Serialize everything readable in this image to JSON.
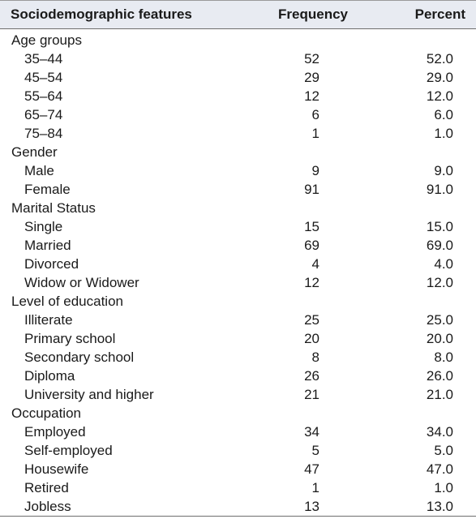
{
  "headers": {
    "feature": "Sociodemographic features",
    "frequency": "Frequency",
    "percent": "Percent"
  },
  "groups": [
    {
      "label": "Age groups",
      "rows": [
        {
          "label": "35–44",
          "frequency": "52",
          "percent": "52.0"
        },
        {
          "label": "45–54",
          "frequency": "29",
          "percent": "29.0"
        },
        {
          "label": "55–64",
          "frequency": "12",
          "percent": "12.0"
        },
        {
          "label": "65–74",
          "frequency": "6",
          "percent": "6.0"
        },
        {
          "label": "75–84",
          "frequency": "1",
          "percent": "1.0"
        }
      ]
    },
    {
      "label": "Gender",
      "rows": [
        {
          "label": "Male",
          "frequency": "9",
          "percent": "9.0"
        },
        {
          "label": "Female",
          "frequency": "91",
          "percent": "91.0"
        }
      ]
    },
    {
      "label": "Marital Status",
      "rows": [
        {
          "label": "Single",
          "frequency": "15",
          "percent": "15.0"
        },
        {
          "label": "Married",
          "frequency": "69",
          "percent": "69.0"
        },
        {
          "label": "Divorced",
          "frequency": "4",
          "percent": "4.0"
        },
        {
          "label": "Widow or Widower",
          "frequency": "12",
          "percent": "12.0"
        }
      ]
    },
    {
      "label": "Level of education",
      "rows": [
        {
          "label": "Illiterate",
          "frequency": "25",
          "percent": "25.0"
        },
        {
          "label": "Primary school",
          "frequency": "20",
          "percent": "20.0"
        },
        {
          "label": "Secondary school",
          "frequency": "8",
          "percent": "8.0"
        },
        {
          "label": "Diploma",
          "frequency": "26",
          "percent": "26.0"
        },
        {
          "label": "University and higher",
          "frequency": "21",
          "percent": "21.0"
        }
      ]
    },
    {
      "label": "Occupation",
      "rows": [
        {
          "label": "Employed",
          "frequency": "34",
          "percent": "34.0"
        },
        {
          "label": "Self-employed",
          "frequency": "5",
          "percent": "5.0"
        },
        {
          "label": "Housewife",
          "frequency": "47",
          "percent": "47.0"
        },
        {
          "label": "Retired",
          "frequency": "1",
          "percent": "1.0"
        },
        {
          "label": "Jobless",
          "frequency": "13",
          "percent": "13.0"
        }
      ]
    }
  ]
}
